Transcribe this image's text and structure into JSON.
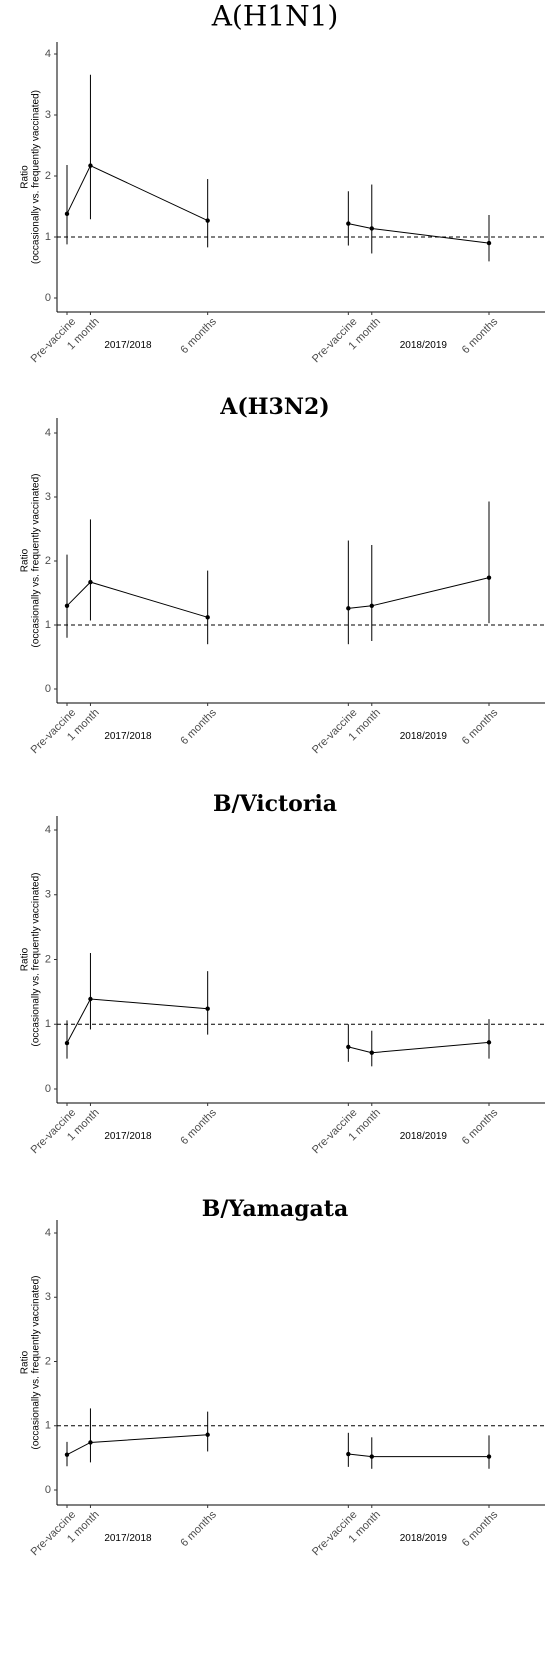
{
  "chart_data": [
    {
      "type": "line",
      "title": "A(H1N1)",
      "ylabel": [
        "Ratio",
        "(occasionally vs. frequently vaccinated)"
      ],
      "yticks": [
        0,
        1,
        2,
        3,
        4
      ],
      "ylim": [
        -0.15,
        4.25
      ],
      "reference_line": 1,
      "x_positions": [
        {
          "label": "Pre-vaccine",
          "season": "2017/2018",
          "x": 0
        },
        {
          "label": "1 month",
          "season": "2017/2018",
          "x": 1
        },
        {
          "label": "6 months",
          "season": "2017/2018",
          "x": 6
        },
        {
          "label": "Pre-vaccine",
          "season": "2018/2019",
          "x": 12
        },
        {
          "label": "1 month",
          "season": "2018/2019",
          "x": 13
        },
        {
          "label": "6 months",
          "season": "2018/2019",
          "x": 18
        }
      ],
      "season_labels": [
        "2017/2018",
        "2018/2019"
      ],
      "points": [
        {
          "y": 1.38,
          "lo": 0.88,
          "hi": 2.18
        },
        {
          "y": 2.17,
          "lo": 1.29,
          "hi": 3.66
        },
        {
          "y": 1.27,
          "lo": 0.83,
          "hi": 1.95
        },
        {
          "y": 1.22,
          "lo": 0.86,
          "hi": 1.75
        },
        {
          "y": 1.14,
          "lo": 0.73,
          "hi": 1.86
        },
        {
          "y": 0.9,
          "lo": 0.6,
          "hi": 1.36
        }
      ]
    },
    {
      "type": "line",
      "title": "A(H3N2)",
      "ylabel": [
        "Ratio",
        "(occasionally vs. frequently vaccinated)"
      ],
      "yticks": [
        0,
        1,
        2,
        3,
        4
      ],
      "ylim": [
        -0.15,
        4.25
      ],
      "reference_line": 1,
      "x_positions": [
        {
          "label": "Pre-vaccine",
          "season": "2017/2018",
          "x": 0
        },
        {
          "label": "1 month",
          "season": "2017/2018",
          "x": 1
        },
        {
          "label": "6 months",
          "season": "2017/2018",
          "x": 6
        },
        {
          "label": "Pre-vaccine",
          "season": "2018/2019",
          "x": 12
        },
        {
          "label": "1 month",
          "season": "2018/2019",
          "x": 13
        },
        {
          "label": "6 months",
          "season": "2018/2019",
          "x": 18
        }
      ],
      "season_labels": [
        "2017/2018",
        "2018/2019"
      ],
      "points": [
        {
          "y": 1.3,
          "lo": 0.8,
          "hi": 2.1
        },
        {
          "y": 1.67,
          "lo": 1.07,
          "hi": 2.65
        },
        {
          "y": 1.12,
          "lo": 0.7,
          "hi": 1.85
        },
        {
          "y": 1.26,
          "lo": 0.7,
          "hi": 2.32
        },
        {
          "y": 1.3,
          "lo": 0.75,
          "hi": 2.25
        },
        {
          "y": 1.74,
          "lo": 1.03,
          "hi": 2.93
        }
      ]
    },
    {
      "type": "line",
      "title": "B/Victoria",
      "ylabel": [
        "Ratio",
        "(occasionally vs. frequently vaccinated)"
      ],
      "yticks": [
        0,
        1,
        2,
        3,
        4
      ],
      "ylim": [
        -0.15,
        4.25
      ],
      "reference_line": 1,
      "x_positions": [
        {
          "label": "Pre-vaccine",
          "season": "2017/2018",
          "x": 0
        },
        {
          "label": "1 month",
          "season": "2017/2018",
          "x": 1
        },
        {
          "label": "6 months",
          "season": "2017/2018",
          "x": 6
        },
        {
          "label": "Pre-vaccine",
          "season": "2018/2019",
          "x": 12
        },
        {
          "label": "1 month",
          "season": "2018/2019",
          "x": 13
        },
        {
          "label": "6 months",
          "season": "2018/2019",
          "x": 18
        }
      ],
      "season_labels": [
        "2017/2018",
        "2018/2019"
      ],
      "points": [
        {
          "y": 0.71,
          "lo": 0.47,
          "hi": 1.06
        },
        {
          "y": 1.39,
          "lo": 0.92,
          "hi": 2.1
        },
        {
          "y": 1.24,
          "lo": 0.84,
          "hi": 1.82
        },
        {
          "y": 0.65,
          "lo": 0.42,
          "hi": 1.0
        },
        {
          "y": 0.56,
          "lo": 0.35,
          "hi": 0.9
        },
        {
          "y": 0.72,
          "lo": 0.47,
          "hi": 1.08
        }
      ]
    },
    {
      "type": "line",
      "title": "B/Yamagata",
      "ylabel": [
        "Ratio",
        "(occasionally vs. frequently vaccinated)"
      ],
      "yticks": [
        0,
        1,
        2,
        3,
        4
      ],
      "ylim": [
        -0.15,
        4.25
      ],
      "reference_line": 1,
      "x_positions": [
        {
          "label": "Pre-vaccine",
          "season": "2017/2018",
          "x": 0
        },
        {
          "label": "1 month",
          "season": "2017/2018",
          "x": 1
        },
        {
          "label": "6 months",
          "season": "2017/2018",
          "x": 6
        },
        {
          "label": "Pre-vaccine",
          "season": "2018/2019",
          "x": 12
        },
        {
          "label": "1 month",
          "season": "2018/2019",
          "x": 13
        },
        {
          "label": "6 months",
          "season": "2018/2019",
          "x": 18
        }
      ],
      "season_labels": [
        "2017/2018",
        "2018/2019"
      ],
      "points": [
        {
          "y": 0.55,
          "lo": 0.37,
          "hi": 0.75
        },
        {
          "y": 0.74,
          "lo": 0.43,
          "hi": 1.27
        },
        {
          "y": 0.86,
          "lo": 0.6,
          "hi": 1.22
        },
        {
          "y": 0.56,
          "lo": 0.36,
          "hi": 0.89
        },
        {
          "y": 0.52,
          "lo": 0.33,
          "hi": 0.82
        },
        {
          "y": 0.52,
          "lo": 0.33,
          "hi": 0.85
        }
      ]
    }
  ],
  "style": {
    "line_color": "#000000",
    "tick_label_color": "#4d4d4d",
    "reference_line": "dashed"
  }
}
